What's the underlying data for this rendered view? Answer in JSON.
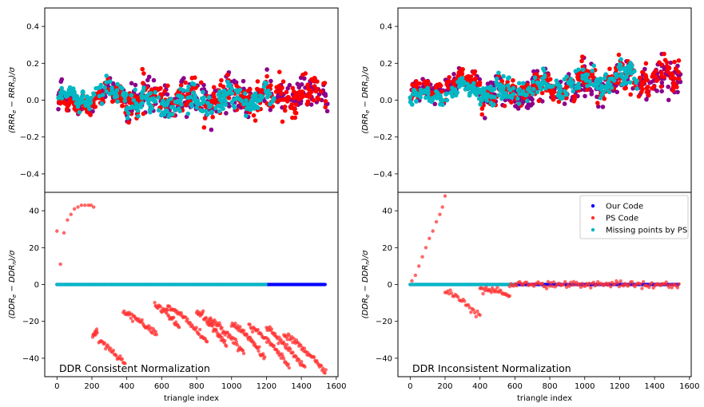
{
  "chart_data": [
    {
      "id": "top-left",
      "type": "scatter",
      "ylabel_html": "(RRR_e - RRR_n)/σ",
      "ylabel_parts": [
        "(RRR",
        "e",
        " − RRR",
        "n",
        ")/σ"
      ],
      "ylim": [
        -0.5,
        0.5
      ],
      "yticks": [
        "0.4",
        "0.2",
        "0.0",
        "−0.2",
        "−0.4"
      ],
      "ytick_values": [
        0.4,
        0.2,
        0.0,
        -0.2,
        -0.4
      ],
      "xlim": [
        -70,
        1610
      ],
      "series": [
        {
          "name": "Our Code",
          "color": "#8b008b",
          "style": "band",
          "seed": 11,
          "segments": [
            [
              0,
              400,
              -0.02,
              0.04,
              0.06
            ],
            [
              400,
              1550,
              0.0,
              0.03,
              0.11
            ]
          ]
        },
        {
          "name": "PS Code",
          "color": "#ff0000",
          "style": "band",
          "seed": 23,
          "segments": [
            [
              0,
              400,
              -0.03,
              0.03,
              0.05
            ],
            [
              400,
              1540,
              0.01,
              0.03,
              0.1
            ]
          ]
        },
        {
          "name": "Missing points by PS",
          "color": "#00b7c3",
          "style": "band",
          "seed": 37,
          "segments": [
            [
              0,
              400,
              0.0,
              0.05,
              0.05
            ],
            [
              400,
              1250,
              -0.03,
              0.01,
              0.07
            ]
          ]
        }
      ]
    },
    {
      "id": "top-right",
      "type": "scatter",
      "ylabel_html": "(DRR_e - DRR_n)/σ",
      "ylabel_parts": [
        "(DRR",
        "e",
        " − DRR",
        "n",
        ")/σ"
      ],
      "ylim": [
        -0.5,
        0.5
      ],
      "yticks": [
        "0.4",
        "0.2",
        "0.0",
        "−0.2",
        "−0.4"
      ],
      "ytick_values": [
        0.4,
        0.2,
        0.0,
        -0.2,
        -0.4
      ],
      "xlim": [
        -70,
        1610
      ],
      "series": [
        {
          "name": "Our Code",
          "color": "#8b008b",
          "style": "band",
          "seed": 41,
          "segments": [
            [
              0,
              400,
              0.02,
              0.12,
              0.06
            ],
            [
              400,
              1550,
              0.02,
              0.12,
              0.1
            ]
          ]
        },
        {
          "name": "PS Code",
          "color": "#ff0000",
          "style": "band",
          "seed": 53,
          "segments": [
            [
              0,
              400,
              0.02,
              0.13,
              0.05
            ],
            [
              400,
              1540,
              0.03,
              0.14,
              0.09
            ]
          ]
        },
        {
          "name": "Missing points by PS",
          "color": "#00b7c3",
          "style": "band",
          "seed": 67,
          "segments": [
            [
              0,
              400,
              0.0,
              0.07,
              0.04
            ],
            [
              400,
              1300,
              0.03,
              0.13,
              0.06
            ]
          ]
        }
      ]
    },
    {
      "id": "bottom-left",
      "type": "scatter",
      "ylabel_parts": [
        "(DDR",
        "e",
        " − DDR",
        "n",
        ")/σ"
      ],
      "ylim": [
        -50,
        50
      ],
      "yticks": [
        "40",
        "20",
        "0",
        "−20",
        "−40"
      ],
      "ytick_values": [
        40,
        20,
        0,
        -20,
        -40
      ],
      "xlim": [
        -70,
        1610
      ],
      "xticks": [
        "0",
        "200",
        "400",
        "600",
        "800",
        "1000",
        "1200",
        "1400",
        "1600"
      ],
      "xtick_values": [
        0,
        200,
        400,
        600,
        800,
        1000,
        1200,
        1400,
        1600
      ],
      "xlabel": "triangle index",
      "annotation": "DDR Consistent Normalization",
      "series": [
        {
          "name": "Our Code",
          "color": "#0000ff",
          "style": "zero",
          "x_range": [
            0,
            1540
          ],
          "step": 6
        },
        {
          "name": "Missing points by PS",
          "color": "#00b7c3",
          "style": "zero",
          "x_range": [
            0,
            1200
          ],
          "step": 9
        },
        {
          "name": "PS Code",
          "color": "#ff3333",
          "style": "arcs",
          "points": [
            [
              0,
              29
            ],
            [
              20,
              11
            ],
            [
              40,
              28
            ],
            [
              60,
              35
            ],
            [
              80,
              38
            ],
            [
              100,
              41
            ],
            [
              120,
              42
            ],
            [
              140,
              43
            ],
            [
              160,
              43
            ],
            [
              180,
              43
            ],
            [
              195,
              43
            ],
            [
              210,
              42
            ]
          ],
          "arcs": [
            [
              205,
              -28,
              230,
              -25,
              12
            ],
            [
              240,
              -31,
              390,
              -43,
              28
            ],
            [
              380,
              -15,
              570,
              -27,
              40
            ],
            [
              560,
              -11,
              700,
              -23,
              32
            ],
            [
              630,
              -12,
              860,
              -31,
              46
            ],
            [
              800,
              -15,
              970,
              -33,
              42
            ],
            [
              870,
              -19,
              1070,
              -37,
              44
            ],
            [
              1000,
              -21,
              1190,
              -40,
              44
            ],
            [
              1100,
              -23,
              1330,
              -44,
              46
            ],
            [
              1200,
              -24,
              1420,
              -46,
              46
            ],
            [
              1300,
              -27,
              1540,
              -48,
              48
            ]
          ]
        }
      ]
    },
    {
      "id": "bottom-right",
      "type": "scatter",
      "ylabel_parts": [
        "(DDR",
        "e",
        " − DDR",
        "n",
        ")/σ"
      ],
      "ylim": [
        -50,
        50
      ],
      "yticks": [
        "40",
        "20",
        "0",
        "−20",
        "−40"
      ],
      "ytick_values": [
        40,
        20,
        0,
        -20,
        -40
      ],
      "xlim": [
        -70,
        1610
      ],
      "xticks": [
        "0",
        "200",
        "400",
        "600",
        "800",
        "1000",
        "1200",
        "1400",
        "1600"
      ],
      "xtick_values": [
        0,
        200,
        400,
        600,
        800,
        1000,
        1200,
        1400,
        1600
      ],
      "xlabel": "triangle index",
      "annotation": "DDR Inconsistent Normalization",
      "legend": {
        "position": "top-right",
        "entries": [
          {
            "label": "Our Code",
            "color": "#0000ff"
          },
          {
            "label": "PS Code",
            "color": "#ff3333"
          },
          {
            "label": "Missing points by PS",
            "color": "#00b7c3"
          }
        ]
      },
      "series": [
        {
          "name": "Our Code",
          "color": "#0000ff",
          "style": "zero",
          "x_range": [
            0,
            1540
          ],
          "step": 6
        },
        {
          "name": "Missing points by PS",
          "color": "#00b7c3",
          "style": "zero",
          "x_range": [
            0,
            600
          ],
          "step": 9
        },
        {
          "name": "PS Code",
          "color": "#ff3333",
          "style": "arcs",
          "points": [
            [
              10,
              2
            ],
            [
              30,
              5
            ],
            [
              50,
              10
            ],
            [
              70,
              15
            ],
            [
              90,
              20
            ],
            [
              110,
              25
            ],
            [
              130,
              29
            ],
            [
              150,
              34
            ],
            [
              170,
              38
            ],
            [
              185,
              42
            ],
            [
              200,
              48
            ]
          ],
          "arcs": [
            [
              200,
              -3,
              400,
              -18,
              28
            ],
            [
              400,
              -2,
              570,
              -6,
              30
            ],
            [
              570,
              0,
              1540,
              0,
              120
            ]
          ]
        }
      ]
    }
  ]
}
